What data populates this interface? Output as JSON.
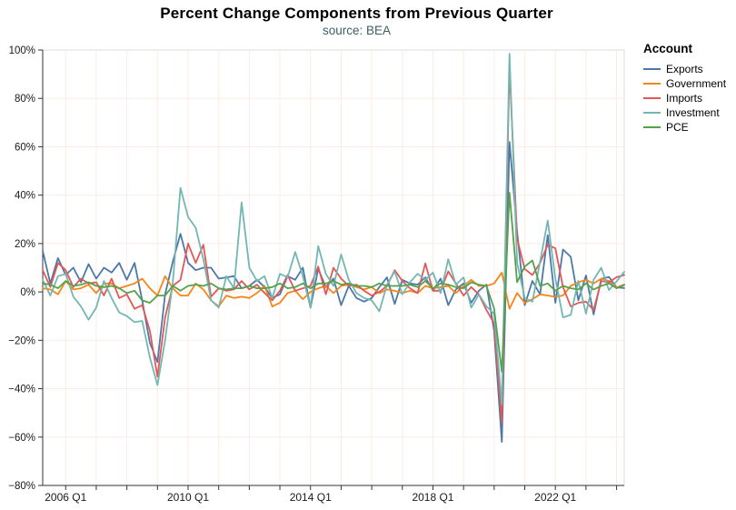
{
  "header": {
    "title": "Percent Change Components from Previous Quarter",
    "subtitle": "source: BEA"
  },
  "legend": {
    "title": "Account",
    "entries": [
      {
        "label": "Exports",
        "color": "#4c78a8"
      },
      {
        "label": "Government",
        "color": "#f58518"
      },
      {
        "label": "Imports",
        "color": "#e45756"
      },
      {
        "label": "Investment",
        "color": "#72b7b2"
      },
      {
        "label": "PCE",
        "color": "#54a24b"
      }
    ]
  },
  "chart_data": {
    "type": "line",
    "title": "Percent Change Components from Previous Quarter",
    "subtitle": "source: BEA",
    "xlabel": "",
    "ylabel": "",
    "ylim": [
      -80,
      100
    ],
    "grid": true,
    "grid_color": "#fcebe4",
    "axis_color": "#333333",
    "border_color": "#dddddd",
    "legend_position": "right",
    "legend_title": "Account",
    "y_ticks": [
      {
        "value": 100,
        "label": "100%"
      },
      {
        "value": 80,
        "label": "80%"
      },
      {
        "value": 60,
        "label": "60%"
      },
      {
        "value": 40,
        "label": "40%"
      },
      {
        "value": 20,
        "label": "20%"
      },
      {
        "value": 0,
        "label": "0%"
      },
      {
        "value": -20,
        "label": "−20%"
      },
      {
        "value": -40,
        "label": "−40%"
      },
      {
        "value": -60,
        "label": "−60%"
      },
      {
        "value": -80,
        "label": "−80%"
      }
    ],
    "x_tick_labels": [
      "2006 Q1",
      "2010 Q1",
      "2014 Q1",
      "2018 Q1",
      "2022 Q1"
    ],
    "quarters": [
      "2005 Q2",
      "2005 Q3",
      "2005 Q4",
      "2006 Q1",
      "2006 Q2",
      "2006 Q3",
      "2006 Q4",
      "2007 Q1",
      "2007 Q2",
      "2007 Q3",
      "2007 Q4",
      "2008 Q1",
      "2008 Q2",
      "2008 Q3",
      "2008 Q4",
      "2009 Q1",
      "2009 Q2",
      "2009 Q3",
      "2009 Q4",
      "2010 Q1",
      "2010 Q2",
      "2010 Q3",
      "2010 Q4",
      "2011 Q1",
      "2011 Q2",
      "2011 Q3",
      "2011 Q4",
      "2012 Q1",
      "2012 Q2",
      "2012 Q3",
      "2012 Q4",
      "2013 Q1",
      "2013 Q2",
      "2013 Q3",
      "2013 Q4",
      "2014 Q1",
      "2014 Q2",
      "2014 Q3",
      "2014 Q4",
      "2015 Q1",
      "2015 Q2",
      "2015 Q3",
      "2015 Q4",
      "2016 Q1",
      "2016 Q2",
      "2016 Q3",
      "2016 Q4",
      "2017 Q1",
      "2017 Q2",
      "2017 Q3",
      "2017 Q4",
      "2018 Q1",
      "2018 Q2",
      "2018 Q3",
      "2018 Q4",
      "2019 Q1",
      "2019 Q2",
      "2019 Q3",
      "2019 Q4",
      "2020 Q1",
      "2020 Q2",
      "2020 Q3",
      "2020 Q4",
      "2021 Q1",
      "2021 Q2",
      "2021 Q3",
      "2021 Q4",
      "2022 Q1",
      "2022 Q2",
      "2022 Q3",
      "2022 Q4",
      "2023 Q1",
      "2023 Q2",
      "2023 Q3",
      "2023 Q4",
      "2024 Q1",
      "2024 Q2"
    ],
    "series": [
      {
        "name": "Exports",
        "color": "#4c78a8",
        "values": [
          17.0,
          3.5,
          14.0,
          7.0,
          10.0,
          4.0,
          11.5,
          5.5,
          10.0,
          8.0,
          12.0,
          5.0,
          12.0,
          -3.5,
          -21.0,
          -29.0,
          -1.0,
          12.5,
          24.0,
          12.0,
          9.0,
          10.0,
          10.0,
          5.5,
          6.0,
          6.5,
          1.5,
          2.5,
          5.0,
          2.0,
          -2.5,
          -1.0,
          6.5,
          5.0,
          10.0,
          -6.5,
          9.5,
          2.0,
          5.5,
          -5.5,
          2.5,
          -2.5,
          -4.0,
          -2.5,
          2.0,
          6.0,
          -5.0,
          5.0,
          3.5,
          3.0,
          6.0,
          0.5,
          5.5,
          -5.5,
          1.0,
          3.5,
          -4.5,
          0.5,
          3.0,
          -16.0,
          -62.0,
          62.0,
          25.0,
          -5.5,
          4.5,
          -1.0,
          23.5,
          -4.5,
          17.5,
          14.5,
          -3.5,
          6.8,
          -9.3,
          5.4,
          6.2,
          1.9,
          1.6
        ]
      },
      {
        "name": "Government",
        "color": "#f58518",
        "values": [
          1.5,
          1.0,
          -1.0,
          4.5,
          1.0,
          1.5,
          3.0,
          -0.5,
          3.5,
          3.5,
          1.5,
          2.5,
          3.5,
          5.5,
          1.5,
          -1.5,
          6.5,
          1.5,
          -1.5,
          -1.5,
          3.5,
          1.0,
          -3.5,
          -6.0,
          -1.5,
          -2.5,
          -2.0,
          -2.5,
          -0.5,
          2.5,
          -6.0,
          -4.5,
          -0.5,
          0.5,
          -3.0,
          0.0,
          1.5,
          2.5,
          -0.5,
          2.5,
          3.0,
          2.0,
          1.0,
          2.0,
          -0.5,
          1.0,
          0.5,
          -0.5,
          0.5,
          -0.5,
          2.5,
          1.5,
          2.0,
          2.5,
          -0.5,
          2.5,
          5.0,
          2.5,
          2.5,
          3.5,
          8.0,
          -7.0,
          -0.5,
          -4.5,
          -3.0,
          -1.0,
          -1.5,
          -2.0,
          -1.5,
          2.5,
          4.0,
          5.0,
          3.5,
          5.5,
          4.5,
          1.8,
          3.1
        ]
      },
      {
        "name": "Imports",
        "color": "#e45756",
        "values": [
          9.0,
          2.0,
          12.0,
          9.0,
          2.0,
          5.5,
          3.5,
          4.0,
          -1.5,
          5.5,
          -2.5,
          -1.0,
          -7.0,
          -5.5,
          -16.0,
          -35.0,
          -10.5,
          2.5,
          5.0,
          20.0,
          12.0,
          19.5,
          -2.0,
          1.5,
          0.5,
          1.0,
          4.5,
          1.0,
          3.0,
          -0.5,
          -3.5,
          0.5,
          7.0,
          0.5,
          1.5,
          2.5,
          10.5,
          -1.0,
          10.0,
          5.5,
          2.5,
          3.0,
          0.5,
          -1.5,
          0.0,
          2.5,
          9.0,
          4.5,
          1.5,
          -0.5,
          11.8,
          0.5,
          0.5,
          8.5,
          3.5,
          -1.5,
          2.0,
          -1.0,
          -7.5,
          -13.0,
          -54.0,
          93.0,
          22.0,
          9.5,
          7.0,
          12.0,
          19.5,
          18.0,
          2.0,
          -6.0,
          -4.5,
          -4.0,
          -7.5,
          4.5,
          4.0,
          6.1,
          7.0
        ]
      },
      {
        "name": "Investment",
        "color": "#72b7b2",
        "values": [
          5.0,
          -1.5,
          6.5,
          7.5,
          -2.0,
          -6.0,
          -11.5,
          -6.5,
          4.5,
          -2.5,
          -8.5,
          -10.0,
          -12.5,
          -12.0,
          -27.0,
          -38.5,
          -20.0,
          4.0,
          43.0,
          31.0,
          26.5,
          13.5,
          -3.5,
          -6.5,
          6.5,
          1.5,
          37.0,
          10.0,
          4.5,
          6.5,
          -2.5,
          7.5,
          6.0,
          16.5,
          6.5,
          -6.5,
          19.0,
          7.5,
          2.5,
          15.5,
          5.0,
          -0.5,
          -2.5,
          -3.5,
          -8.0,
          3.0,
          8.5,
          -1.0,
          4.0,
          7.5,
          5.0,
          8.0,
          -0.5,
          13.5,
          3.0,
          6.0,
          -6.5,
          -1.0,
          -6.0,
          -9.0,
          -46.5,
          98.5,
          12.0,
          -2.5,
          -4.0,
          12.5,
          29.5,
          5.5,
          -10.5,
          -9.5,
          4.5,
          -9.0,
          5.0,
          10.0,
          0.7,
          4.4,
          8.3
        ]
      },
      {
        "name": "PCE",
        "color": "#54a24b",
        "values": [
          3.5,
          3.0,
          1.5,
          4.5,
          2.5,
          3.0,
          4.0,
          2.5,
          2.0,
          2.5,
          1.5,
          -0.5,
          0.5,
          -3.5,
          -4.5,
          -1.5,
          -1.5,
          2.5,
          0.5,
          2.5,
          3.0,
          2.5,
          3.5,
          1.5,
          1.0,
          1.5,
          1.5,
          2.5,
          1.5,
          1.5,
          2.0,
          3.5,
          1.5,
          2.0,
          3.5,
          1.5,
          3.5,
          3.5,
          4.5,
          3.0,
          3.5,
          2.5,
          2.5,
          2.0,
          3.5,
          2.5,
          2.5,
          2.5,
          3.0,
          2.0,
          4.5,
          1.5,
          3.5,
          3.0,
          2.0,
          1.5,
          4.0,
          3.0,
          2.5,
          -6.9,
          -33.0,
          41.0,
          4.0,
          10.5,
          13.0,
          2.5,
          3.5,
          0.5,
          2.5,
          1.5,
          1.0,
          3.5,
          1.0,
          2.5,
          3.5,
          1.5,
          2.8
        ]
      }
    ]
  }
}
